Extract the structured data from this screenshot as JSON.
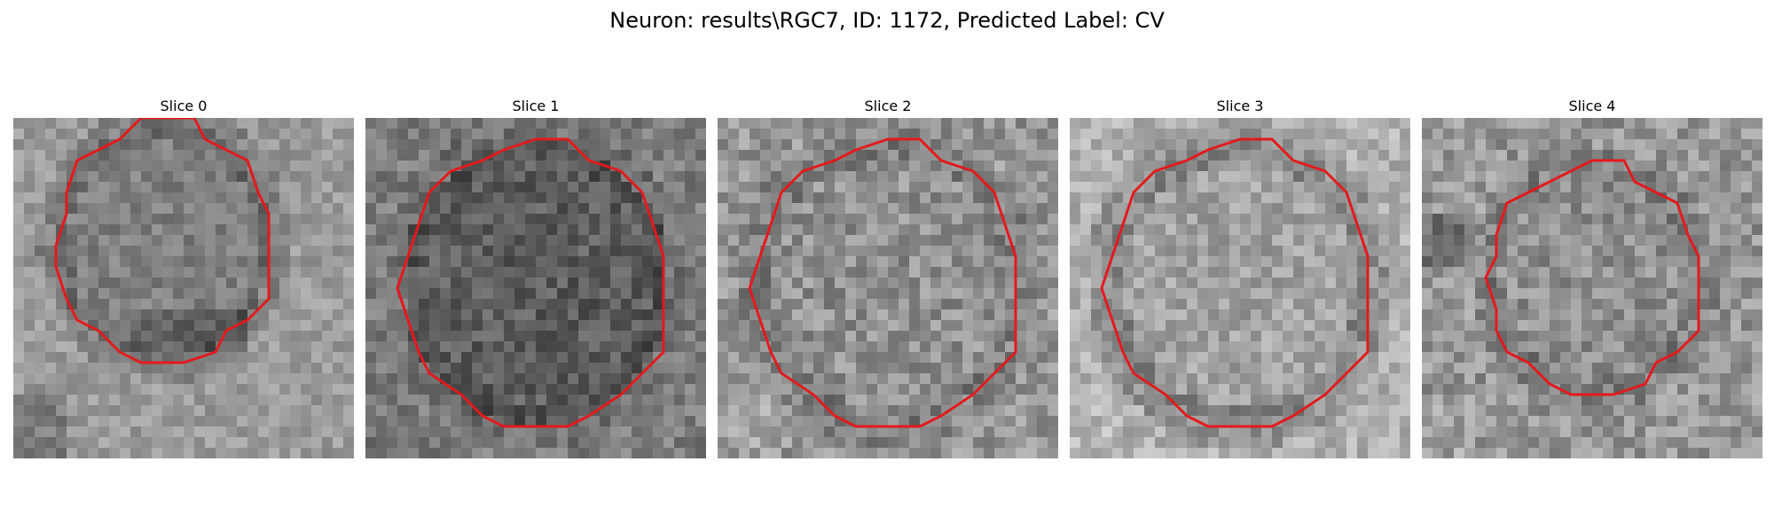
{
  "figure": {
    "title": "Neuron: results\\RGC7, ID: 1172, Predicted Label: CV"
  },
  "contour_color": "#e31a1c",
  "slices": [
    {
      "label": "Slice 0",
      "tone": "darker-ring",
      "contour": "small-centered"
    },
    {
      "label": "Slice 1",
      "tone": "dark",
      "contour": "large-centered"
    },
    {
      "label": "Slice 2",
      "tone": "mid",
      "contour": "large-centered"
    },
    {
      "label": "Slice 3",
      "tone": "light",
      "contour": "large-centered"
    },
    {
      "label": "Slice 4",
      "tone": "mid",
      "contour": "small-lower"
    }
  ]
}
